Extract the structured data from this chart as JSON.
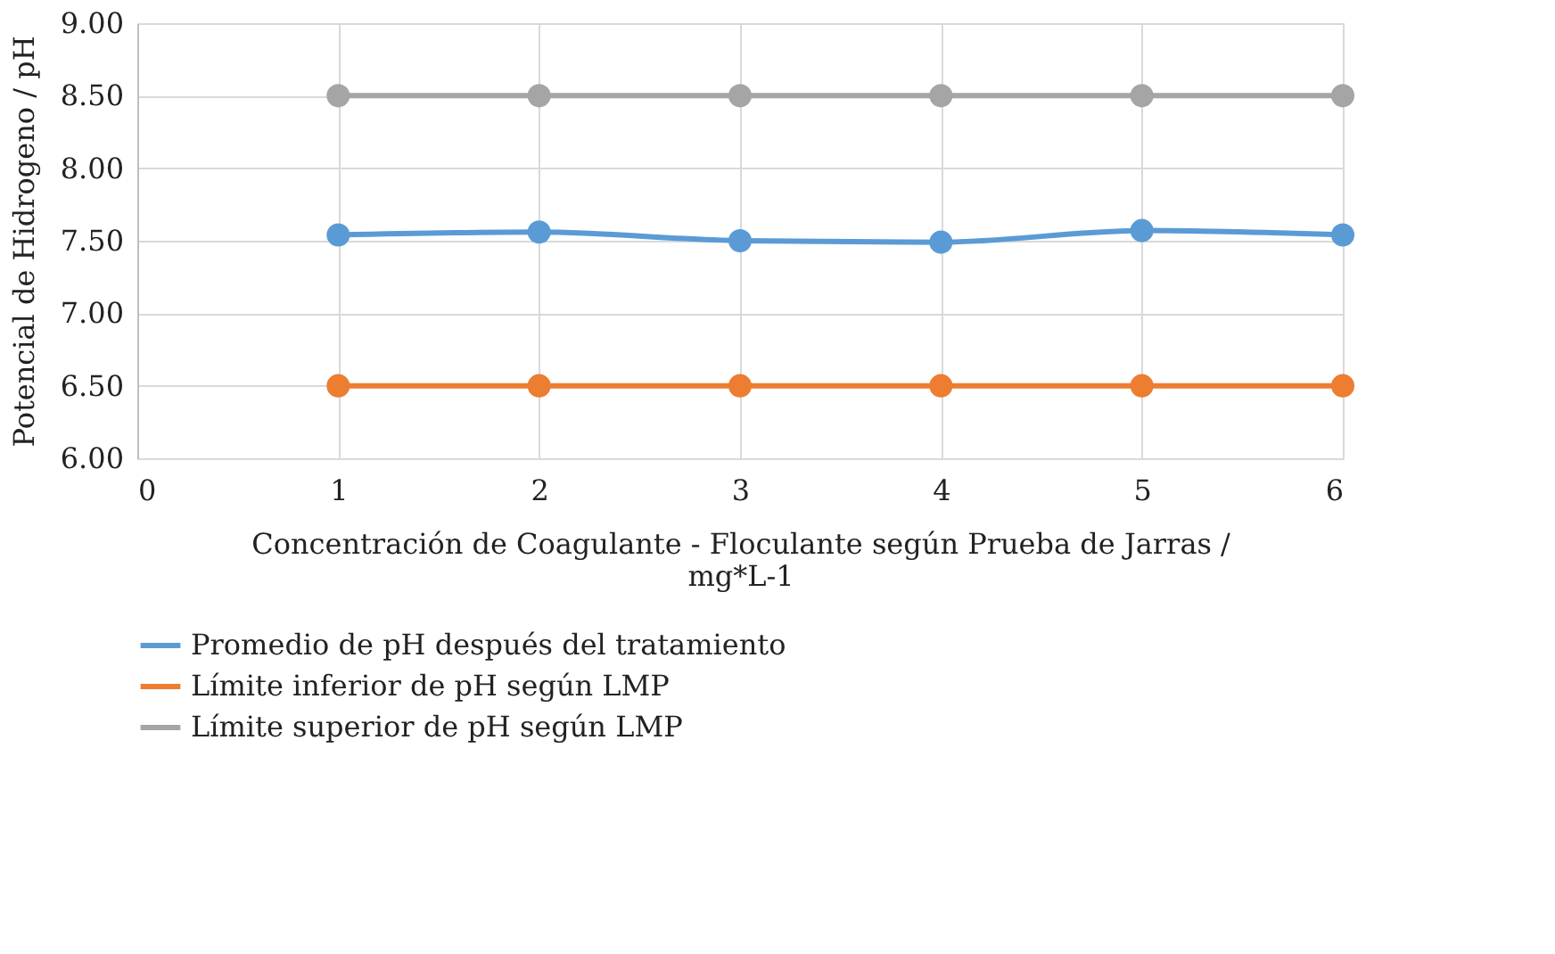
{
  "chart_data": {
    "type": "line",
    "xlabel": "Concentración de Coagulante - Floculante según Prueba de Jarras / mg*L-1",
    "ylabel": "Potencial de Hidrogeno / pH",
    "x": [
      1,
      2,
      3,
      4,
      5,
      6
    ],
    "series": [
      {
        "name": "Promedio de pH después del tratamiento",
        "color": "#5b9bd5",
        "values": [
          7.54,
          7.56,
          7.5,
          7.49,
          7.57,
          7.54
        ]
      },
      {
        "name": "Límite inferior de pH según LMP",
        "color": "#ed7d31",
        "values": [
          6.5,
          6.5,
          6.5,
          6.5,
          6.5,
          6.5
        ]
      },
      {
        "name": "Límite superior de pH según LMP",
        "color": "#a5a5a5",
        "values": [
          8.5,
          8.5,
          8.5,
          8.5,
          8.5,
          8.5
        ]
      }
    ],
    "xlim": [
      0,
      6
    ],
    "xticks": [
      0,
      1,
      2,
      3,
      4,
      5,
      6
    ],
    "ylim": [
      6,
      9
    ],
    "yticks": [
      {
        "value": 6,
        "label": "6.00"
      },
      {
        "value": 6.5,
        "label": "6.50"
      },
      {
        "value": 7,
        "label": "7.00"
      },
      {
        "value": 7.5,
        "label": "7.50"
      },
      {
        "value": 8,
        "label": "8.00"
      },
      {
        "value": 8.5,
        "label": "8.50"
      },
      {
        "value": 9,
        "label": "9.00"
      }
    ],
    "grid": true,
    "legend": "bottom",
    "marker": "circle",
    "line_style": "solid"
  }
}
